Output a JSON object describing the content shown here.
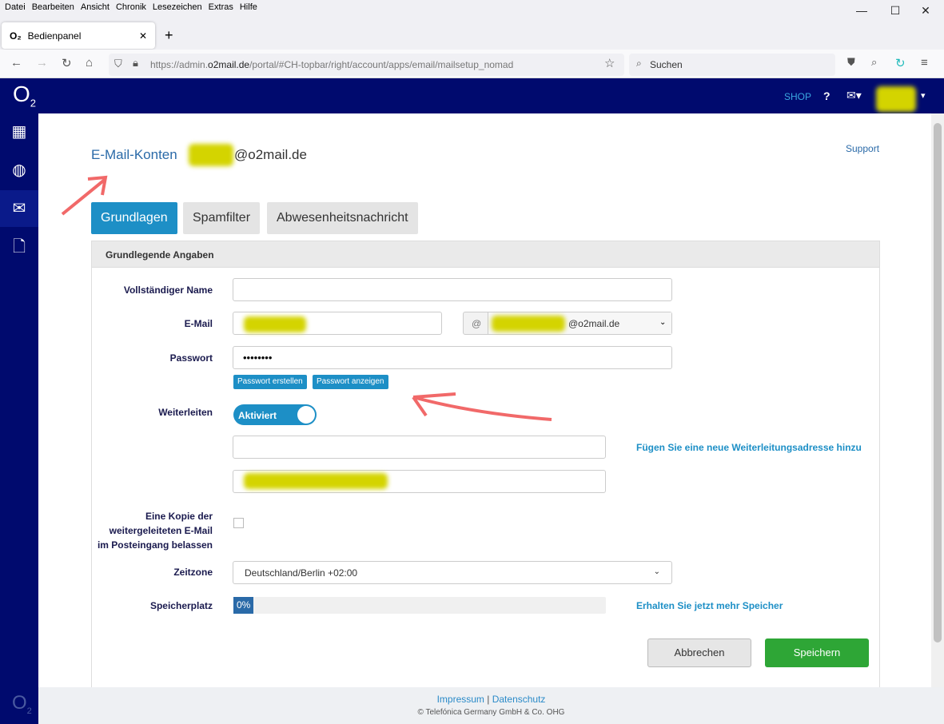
{
  "browser": {
    "menu": [
      "Datei",
      "Bearbeiten",
      "Ansicht",
      "Chronik",
      "Lesezeichen",
      "Extras",
      "Hilfe"
    ],
    "tab_title": "Bedienpanel",
    "url_prefix": "https://admin.",
    "url_domain": "o2mail.de",
    "url_rest": "/portal/#CH-topbar/right/account/apps/email/mailsetup_nomad",
    "search_placeholder": "Suchen"
  },
  "header": {
    "logo": "O2",
    "shop": "SHOP"
  },
  "breadcrumb": {
    "root": "E-Mail-Konten",
    "domain": "@o2mail.de"
  },
  "support": "Support",
  "tabs": [
    {
      "label": "Grundlagen",
      "active": true
    },
    {
      "label": "Spamfilter"
    },
    {
      "label": "Abwesenheitsnachricht"
    }
  ],
  "section_title": "Grundlegende Angaben",
  "form": {
    "full_name_label": "Vollständiger Name",
    "full_name_value": "",
    "email_label": "E-Mail",
    "at": "@",
    "domain_value": "@o2mail.de",
    "password_label": "Passwort",
    "password_value": "••••••••",
    "create_password": "Passwort erstellen",
    "show_password": "Passwort anzeigen",
    "forward_label": "Weiterleiten",
    "forward_toggle": "Aktiviert",
    "add_forward_link": "Fügen Sie eine neue Weiterleitungsadresse hinzu",
    "copy_label": [
      "Eine Kopie der",
      "weitergeleiteten E-Mail",
      "im Posteingang belassen"
    ],
    "copy_checked": false,
    "timezone_label": "Zeitzone",
    "timezone_value": "Deutschland/Berlin +02:00",
    "storage_label": "Speicherplatz",
    "storage_percent": "0%",
    "storage_value": 0,
    "more_storage_link": "Erhalten Sie jetzt mehr Speicher"
  },
  "buttons": {
    "cancel": "Abbrechen",
    "save": "Speichern"
  },
  "footer": {
    "impressum": "Impressum",
    "sep": "|",
    "datenschutz": "Datenschutz",
    "copyright": "© Telefónica Germany GmbH & Co. OHG"
  },
  "colors": {
    "brand": "#000a6e",
    "accent": "#1d8fc6",
    "save": "#2ea636"
  }
}
